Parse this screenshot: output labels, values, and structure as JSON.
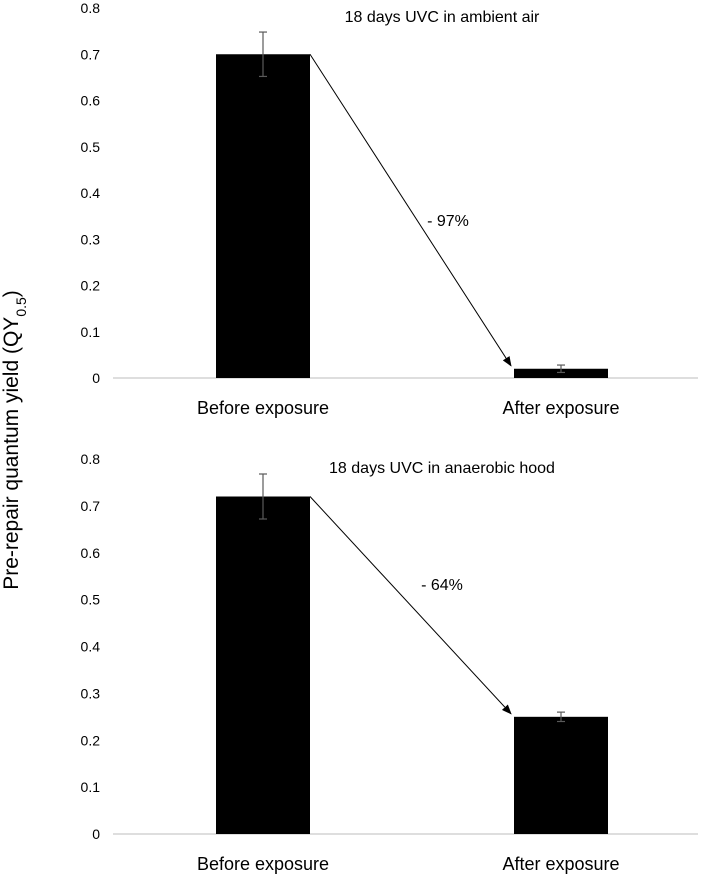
{
  "figure": {
    "ylabel_main": "Pre-repair quantum yield (QY",
    "ylabel_sub": "0.5",
    "ylabel_close": ")"
  },
  "chart_data": [
    {
      "type": "bar",
      "title": "18 days UVC in ambient air",
      "categories": [
        "Before exposure",
        "After exposure"
      ],
      "values": [
        0.7,
        0.02
      ],
      "error": [
        0.048,
        0.008
      ],
      "ylim": [
        0,
        0.8
      ],
      "yticks": [
        "0",
        "0.1",
        "0.2",
        "0.3",
        "0.4",
        "0.5",
        "0.6",
        "0.7",
        "0.8"
      ],
      "ytick_values": [
        0,
        0.1,
        0.2,
        0.3,
        0.4,
        0.5,
        0.6,
        0.7,
        0.8
      ],
      "annotation": "- 97%",
      "bar_color": "#000000",
      "grid": false
    },
    {
      "type": "bar",
      "title": "18 days UVC in anaerobic hood",
      "categories": [
        "Before exposure",
        "After exposure"
      ],
      "values": [
        0.72,
        0.25
      ],
      "error": [
        0.048,
        0.01
      ],
      "ylim": [
        0,
        0.8
      ],
      "yticks": [
        "0",
        "0.1",
        "0.2",
        "0.3",
        "0.4",
        "0.5",
        "0.6",
        "0.7",
        "0.8"
      ],
      "ytick_values": [
        0,
        0.1,
        0.2,
        0.3,
        0.4,
        0.5,
        0.6,
        0.7,
        0.8
      ],
      "annotation": "- 64%",
      "bar_color": "#000000",
      "grid": false
    }
  ]
}
